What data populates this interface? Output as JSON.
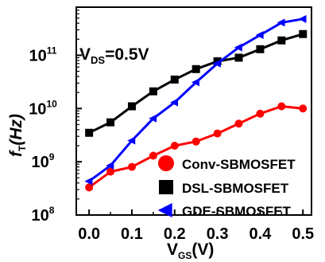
{
  "chart_data": {
    "type": "line",
    "title": "",
    "xlabel": {
      "main": "V",
      "sub": "GS",
      "unit": "(V)"
    },
    "ylabel": {
      "main": "f",
      "sub": "T",
      "unit": "(Hz)"
    },
    "annotation": {
      "main": "V",
      "sub": "DS",
      "rest": "=0.5V"
    },
    "y_scale": "log",
    "xlim": [
      -0.03,
      0.52
    ],
    "ylim": [
      100000000,
      800000000000
    ],
    "x_ticks": [
      {
        "value": 0.0,
        "label": "0.0"
      },
      {
        "value": 0.1,
        "label": "0.1"
      },
      {
        "value": 0.2,
        "label": "0.2"
      },
      {
        "value": 0.3,
        "label": "0.3"
      },
      {
        "value": 0.4,
        "label": "0.4"
      },
      {
        "value": 0.5,
        "label": "0.5"
      }
    ],
    "y_ticks": [
      {
        "value": 100000000,
        "base": "10",
        "exp": "8"
      },
      {
        "value": 1000000000,
        "base": "10",
        "exp": "9"
      },
      {
        "value": 10000000000,
        "base": "10",
        "exp": "10"
      },
      {
        "value": 100000000000,
        "base": "10",
        "exp": "11"
      }
    ],
    "x": [
      0.0,
      0.05,
      0.1,
      0.15,
      0.2,
      0.25,
      0.3,
      0.35,
      0.4,
      0.45,
      0.5
    ],
    "legend_position": "bottom-right",
    "grid": false,
    "series": [
      {
        "name": "Conv-SBMOSFET",
        "marker": "circle",
        "color": "#ff0000",
        "values": [
          330000000,
          650000000,
          800000000,
          1300000000,
          2000000000,
          2400000000,
          3400000000,
          5200000000,
          8000000000,
          11000000000,
          10000000000
        ]
      },
      {
        "name": "DSL-SBMOSFET",
        "marker": "square",
        "color": "#000000",
        "values": [
          3500000000,
          5500000000,
          11000000000,
          21000000000,
          35000000000,
          55000000000,
          77000000000,
          90000000000,
          130000000000,
          190000000000,
          250000000000
        ]
      },
      {
        "name": "GDE-SBMOSFET",
        "marker": "triangle-left",
        "color": "#0000ff",
        "values": [
          430000000,
          850000000,
          2500000000,
          6500000000,
          13000000000,
          31000000000,
          70000000000,
          140000000000,
          240000000000,
          410000000000,
          480000000000
        ]
      }
    ]
  }
}
